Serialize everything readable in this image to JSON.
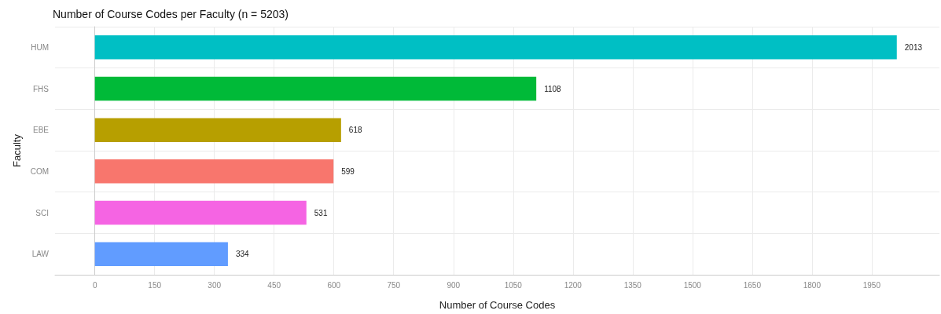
{
  "chart_data": {
    "type": "bar",
    "orientation": "horizontal",
    "title": "Number of Course Codes per Faculty (n = 5203)",
    "xlabel": "Number of Course Codes",
    "ylabel": "Faculty",
    "categories": [
      "HUM",
      "FHS",
      "EBE",
      "COM",
      "SCI",
      "LAW"
    ],
    "values": [
      2013,
      1108,
      618,
      599,
      531,
      334
    ],
    "colors": [
      "#00bfc4",
      "#00ba38",
      "#b79f00",
      "#f8766d",
      "#f564e3",
      "#619cff"
    ],
    "xlim": [
      -100,
      2120
    ],
    "xticks": [
      0,
      150,
      300,
      450,
      600,
      750,
      900,
      1050,
      1200,
      1350,
      1500,
      1650,
      1800,
      1950
    ],
    "data_labels": true,
    "grid": true
  }
}
